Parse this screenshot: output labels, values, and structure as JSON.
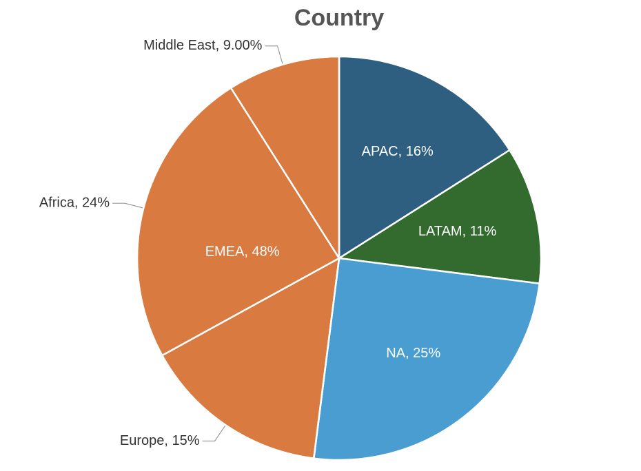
{
  "chart_data": {
    "type": "pie",
    "title": "Country",
    "values": [
      16,
      11,
      25,
      15,
      24,
      9
    ],
    "value_labels": [
      "APAC, 16%",
      "LATAM, 11%",
      "NA, 25%",
      "Europe, 15%",
      "Africa, 24%",
      "Middle East, 9.00%"
    ],
    "colors": [
      "#2e5f80",
      "#336b2e",
      "#4a9dd0",
      "#d97a41",
      "#d97a41",
      "#d97a41"
    ],
    "label_positions": [
      "inside",
      "inside",
      "inside",
      "outside",
      "outside",
      "outside"
    ],
    "groups": [
      {
        "label": "EMEA, 48%",
        "value": 48
      }
    ]
  }
}
